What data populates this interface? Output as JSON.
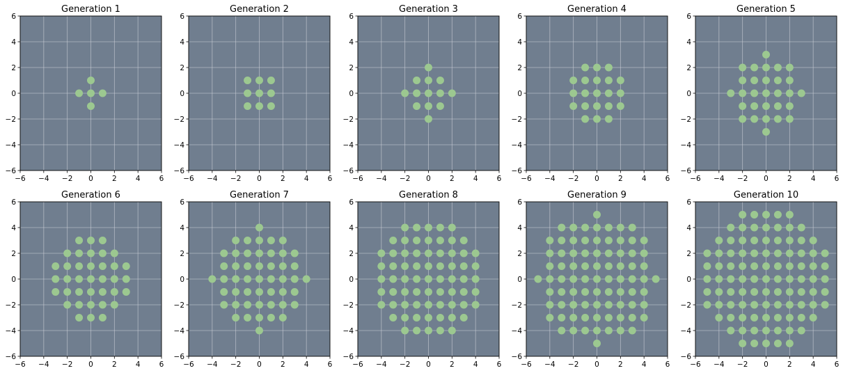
{
  "figure": {
    "panel_color": "#707e8f",
    "point_color": "#9cc890",
    "grid_color": "#c8ccd4"
  },
  "chart_data": [
    {
      "type": "scatter",
      "title": "Generation 1",
      "xlim": [
        -6,
        6
      ],
      "ylim": [
        -6,
        6
      ],
      "xticks": [
        -6,
        -4,
        -2,
        0,
        2,
        4,
        6
      ],
      "yticks": [
        -6,
        -4,
        -2,
        0,
        2,
        4,
        6
      ],
      "grid": true,
      "radius": 1
    },
    {
      "type": "scatter",
      "title": "Generation 2",
      "xlim": [
        -6,
        6
      ],
      "ylim": [
        -6,
        6
      ],
      "xticks": [
        -6,
        -4,
        -2,
        0,
        2,
        4,
        6
      ],
      "yticks": [
        -6,
        -4,
        -2,
        0,
        2,
        4,
        6
      ],
      "grid": true,
      "radius": 1.5
    },
    {
      "type": "scatter",
      "title": "Generation 3",
      "xlim": [
        -6,
        6
      ],
      "ylim": [
        -6,
        6
      ],
      "xticks": [
        -6,
        -4,
        -2,
        0,
        2,
        4,
        6
      ],
      "yticks": [
        -6,
        -4,
        -2,
        0,
        2,
        4,
        6
      ],
      "grid": true,
      "radius": 2
    },
    {
      "type": "scatter",
      "title": "Generation 4",
      "xlim": [
        -6,
        6
      ],
      "ylim": [
        -6,
        6
      ],
      "xticks": [
        -6,
        -4,
        -2,
        0,
        2,
        4,
        6
      ],
      "yticks": [
        -6,
        -4,
        -2,
        0,
        2,
        4,
        6
      ],
      "grid": true,
      "radius": 2.5
    },
    {
      "type": "scatter",
      "title": "Generation 5",
      "xlim": [
        -6,
        6
      ],
      "ylim": [
        -6,
        6
      ],
      "xticks": [
        -6,
        -4,
        -2,
        0,
        2,
        4,
        6
      ],
      "yticks": [
        -6,
        -4,
        -2,
        0,
        2,
        4,
        6
      ],
      "grid": true,
      "radius": 3
    },
    {
      "type": "scatter",
      "title": "Generation 6",
      "xlim": [
        -6,
        6
      ],
      "ylim": [
        -6,
        6
      ],
      "xticks": [
        -6,
        -4,
        -2,
        0,
        2,
        4,
        6
      ],
      "yticks": [
        -6,
        -4,
        -2,
        0,
        2,
        4,
        6
      ],
      "grid": true,
      "radius": 3.5
    },
    {
      "type": "scatter",
      "title": "Generation 7",
      "xlim": [
        -6,
        6
      ],
      "ylim": [
        -6,
        6
      ],
      "xticks": [
        -6,
        -4,
        -2,
        0,
        2,
        4,
        6
      ],
      "yticks": [
        -6,
        -4,
        -2,
        0,
        2,
        4,
        6
      ],
      "grid": true,
      "radius": 4
    },
    {
      "type": "scatter",
      "title": "Generation 8",
      "xlim": [
        -6,
        6
      ],
      "ylim": [
        -6,
        6
      ],
      "xticks": [
        -6,
        -4,
        -2,
        0,
        2,
        4,
        6
      ],
      "yticks": [
        -6,
        -4,
        -2,
        0,
        2,
        4,
        6
      ],
      "grid": true,
      "radius": 4.5
    },
    {
      "type": "scatter",
      "title": "Generation 9",
      "xlim": [
        -6,
        6
      ],
      "ylim": [
        -6,
        6
      ],
      "xticks": [
        -6,
        -4,
        -2,
        0,
        2,
        4,
        6
      ],
      "yticks": [
        -6,
        -4,
        -2,
        0,
        2,
        4,
        6
      ],
      "grid": true,
      "radius": 5
    },
    {
      "type": "scatter",
      "title": "Generation 10",
      "xlim": [
        -6,
        6
      ],
      "ylim": [
        -6,
        6
      ],
      "xticks": [
        -6,
        -4,
        -2,
        0,
        2,
        4,
        6
      ],
      "yticks": [
        -6,
        -4,
        -2,
        0,
        2,
        4,
        6
      ],
      "grid": true,
      "radius": 5.5
    }
  ]
}
